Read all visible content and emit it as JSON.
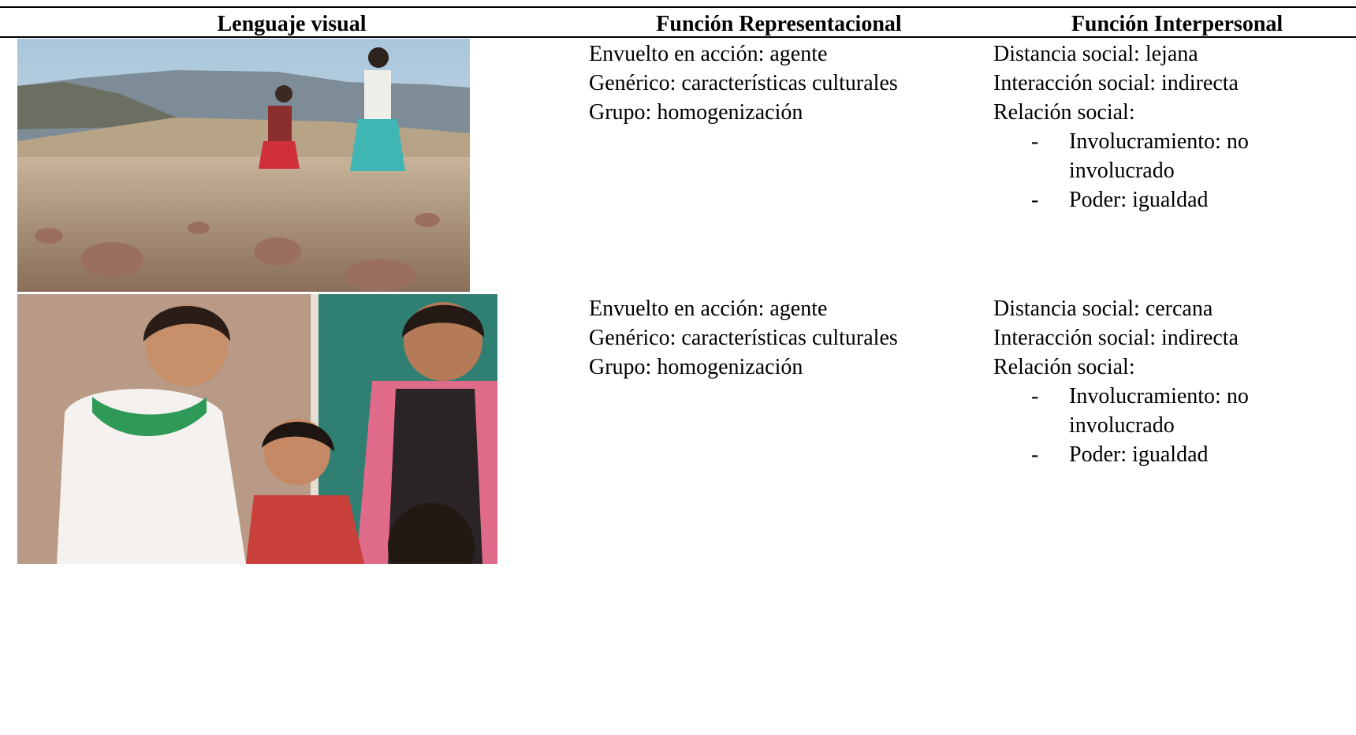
{
  "table": {
    "columns": [
      "Lenguaje visual",
      "Función Representacional",
      "Función Interpersonal"
    ],
    "rows": [
      {
        "representational": [
          "Envuelto en acción: agente",
          "Genérico: características culturales",
          "Grupo: homogenización"
        ],
        "interpersonal": [
          "Distancia social: lejana",
          "Interacción social: indirecta",
          "Relación social:"
        ],
        "bullets": [
          [
            "Involucramiento: no",
            "involucrado"
          ],
          [
            "Poder: igualdad"
          ]
        ]
      },
      {
        "representational": [
          "Envuelto en acción: agente",
          "Genérico: características culturales",
          "Grupo: homogenización"
        ],
        "interpersonal": [
          "Distancia social: cercana",
          "Interacción social: indirecta",
          "Relación social:"
        ],
        "bullets": [
          [
            "Involucramiento: no",
            "involucrado"
          ],
          [
            "Poder: igualdad"
          ]
        ]
      }
    ],
    "bullet_marker": "-"
  }
}
